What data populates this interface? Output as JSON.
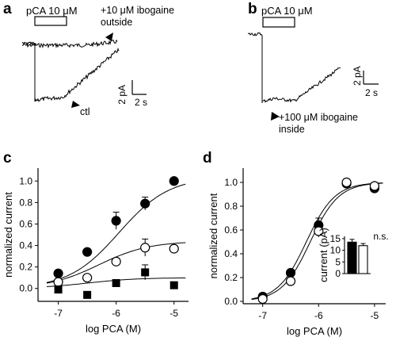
{
  "panels": {
    "a": {
      "letter": "a",
      "pulse_label": "pCA 10 μM",
      "annotation_top": "+10 μM ibogaine",
      "annotation_top_2": "outside",
      "annotation_bottom": "ctl",
      "scale_y": "2 pA",
      "scale_x": "2 s"
    },
    "b": {
      "letter": "b",
      "pulse_label": "pCA 10 μM",
      "annotation": "+100 μM ibogaine",
      "annotation_2": "inside",
      "scale_y": "2 pA",
      "scale_x": "2 s"
    },
    "c": {
      "letter": "c"
    },
    "d": {
      "letter": "d"
    }
  },
  "chart_data": [
    {
      "panel": "c",
      "type": "scatter",
      "xlabel": "log PCA (M)",
      "ylabel": "normalized current",
      "xlim": [
        -7.35,
        -4.75
      ],
      "ylim": [
        -0.12,
        1.12
      ],
      "xticks": [
        -7,
        -6,
        -5
      ],
      "xticklabels": [
        "-7",
        "-6",
        "-5"
      ],
      "yticks": [
        0.0,
        0.2,
        0.4,
        0.6,
        0.8,
        1.0
      ],
      "yticklabels": [
        "0.0",
        "0.2",
        "0.4",
        "0.6",
        "0.8",
        "1.0"
      ],
      "series": [
        {
          "marker": "filled-circle",
          "x": [
            -7.0,
            -6.5,
            -6.0,
            -5.5,
            -5.0
          ],
          "y": [
            0.14,
            0.34,
            0.63,
            0.79,
            1.0
          ],
          "err": [
            0.03,
            0.03,
            0.08,
            0.06,
            0.0
          ],
          "fit": {
            "top": 1.04,
            "bottom": 0.0,
            "ec50_log": -5.95,
            "hill": 1.0
          }
        },
        {
          "marker": "open-circle",
          "x": [
            -7.0,
            -6.5,
            -6.0,
            -5.5,
            -5.0
          ],
          "y": [
            0.06,
            0.1,
            0.25,
            0.38,
            0.37
          ],
          "err": [
            0.02,
            0.02,
            0.03,
            0.08,
            0.0
          ],
          "fit": {
            "top": 0.44,
            "bottom": 0.0,
            "ec50_log": -6.3,
            "hill": 1.0
          }
        },
        {
          "marker": "filled-square",
          "x": [
            -7.0,
            -6.5,
            -6.0,
            -5.5,
            -5.0
          ],
          "y": [
            -0.01,
            -0.06,
            0.05,
            0.15,
            0.03
          ],
          "err": [
            0.03,
            0.03,
            0.03,
            0.07,
            0.02
          ],
          "fit": {
            "top": 0.1,
            "bottom": 0.0,
            "ec50_log": -6.5,
            "hill": 1.0
          }
        }
      ]
    },
    {
      "panel": "d",
      "type": "scatter",
      "xlabel": "log PCA (M)",
      "ylabel": "normalized current",
      "xlim": [
        -7.35,
        -4.8
      ],
      "ylim": [
        -0.02,
        1.12
      ],
      "xticks": [
        -7,
        -6,
        -5
      ],
      "xticklabels": [
        "-7",
        "-6",
        "-5"
      ],
      "yticks": [
        0.0,
        0.2,
        0.4,
        0.6,
        0.8,
        1.0
      ],
      "yticklabels": [
        "0.0",
        "0.2",
        "0.4",
        "0.6",
        "0.8",
        "1.0"
      ],
      "series": [
        {
          "marker": "filled-circle",
          "x": [
            -7.0,
            -6.5,
            -6.0,
            -5.5,
            -5.0
          ],
          "y": [
            0.04,
            0.24,
            0.64,
            0.99,
            0.95
          ],
          "err": [
            0.03,
            0.02,
            0.06,
            0.0,
            0.02
          ],
          "fit": {
            "top": 1.0,
            "bottom": 0.0,
            "ec50_log": -6.22,
            "hill": 1.7
          }
        },
        {
          "marker": "open-circle",
          "x": [
            -7.0,
            -6.5,
            -6.0,
            -5.5,
            -5.0
          ],
          "y": [
            0.02,
            0.17,
            0.59,
            1.0,
            0.97
          ],
          "err": [
            0.02,
            0.02,
            0.05,
            0.0,
            0.02
          ],
          "fit": {
            "top": 1.0,
            "bottom": 0.0,
            "ec50_log": -6.15,
            "hill": 1.7
          }
        }
      ],
      "inset": {
        "type": "bar",
        "ylabel": "current (pA)",
        "ylim": [
          0,
          16
        ],
        "yticks": [
          0,
          5,
          10,
          15
        ],
        "yticklabels": [
          "0",
          "5",
          "10",
          "15"
        ],
        "values": [
          13.5,
          12.0
        ],
        "err": [
          1.2,
          0.9
        ],
        "fills": [
          "#000000",
          "#ffffff"
        ],
        "annotation": "n.s."
      }
    }
  ]
}
